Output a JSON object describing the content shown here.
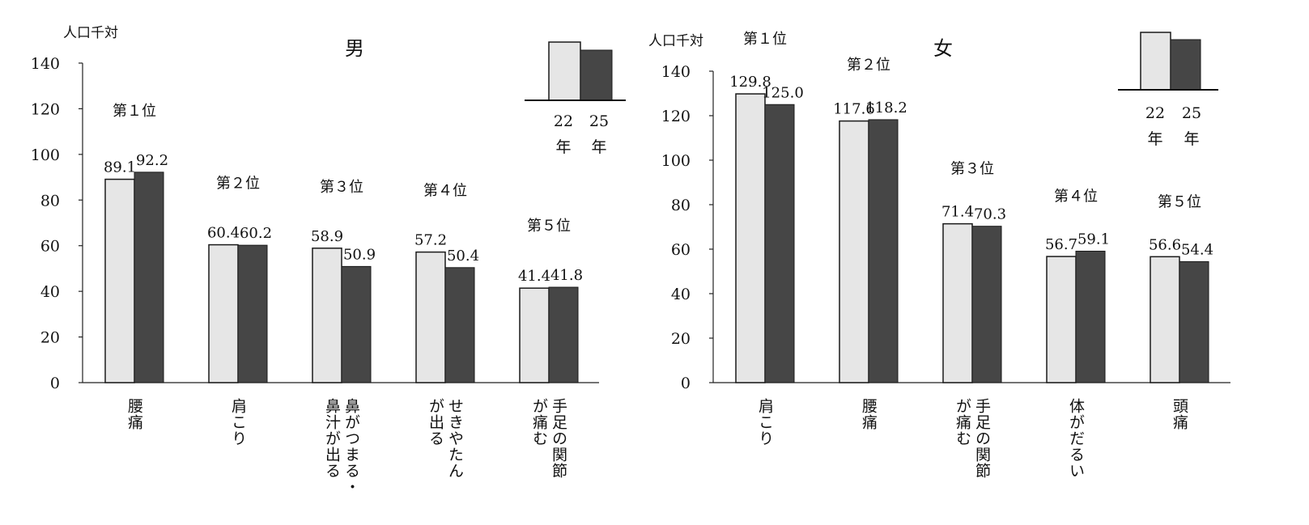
{
  "colors": {
    "year22": "#e6e6e6",
    "year25": "#464646",
    "outline": "#1a1a1a"
  },
  "legend": {
    "labels": [
      [
        "22",
        "年"
      ],
      [
        "25",
        "年"
      ]
    ]
  },
  "chart_data": [
    {
      "type": "bar",
      "title": "男",
      "ylabel": "人口千対",
      "ylim": [
        0,
        140
      ],
      "yticks": [
        "0",
        "20",
        "40",
        "60",
        "80",
        "100",
        "120",
        "140"
      ],
      "categories": [
        [
          "腰痛"
        ],
        [
          "肩こり"
        ],
        [
          "鼻がつまる・",
          "鼻汁が出る"
        ],
        [
          "せきやたん",
          "が出る"
        ],
        [
          "手足の関節",
          "が痛む"
        ]
      ],
      "ranks": [
        "第１位",
        "第２位",
        "第３位",
        "第４位",
        "第５位"
      ],
      "series": [
        {
          "values": [
            89.1,
            60.4,
            58.9,
            57.2,
            41.4
          ],
          "labels": [
            "89.1",
            "60.4",
            "58.9",
            "57.2",
            "41.4"
          ]
        },
        {
          "values": [
            92.2,
            60.2,
            50.9,
            50.4,
            41.8
          ],
          "labels": [
            "92.2",
            "60.2",
            "50.9",
            "50.4",
            "41.8"
          ]
        }
      ]
    },
    {
      "type": "bar",
      "title": "女",
      "ylabel": "人口千対",
      "ylim": [
        0,
        140
      ],
      "yticks": [
        "0",
        "20",
        "40",
        "60",
        "80",
        "100",
        "120",
        "140"
      ],
      "categories": [
        [
          "肩こり"
        ],
        [
          "腰痛"
        ],
        [
          "手足の関節",
          "が痛む"
        ],
        [
          "体がだるい"
        ],
        [
          "頭痛"
        ]
      ],
      "ranks": [
        "第１位",
        "第２位",
        "第３位",
        "第４位",
        "第５位"
      ],
      "series": [
        {
          "values": [
            129.8,
            117.6,
            71.4,
            56.7,
            56.6
          ],
          "labels": [
            "129.8",
            "117.6",
            "71.4",
            "56.7",
            "56.6"
          ]
        },
        {
          "values": [
            125.0,
            118.2,
            70.3,
            59.1,
            54.4
          ],
          "labels": [
            "125.0",
            "118.2",
            "70.3",
            "59.1",
            "54.4"
          ]
        }
      ]
    }
  ]
}
